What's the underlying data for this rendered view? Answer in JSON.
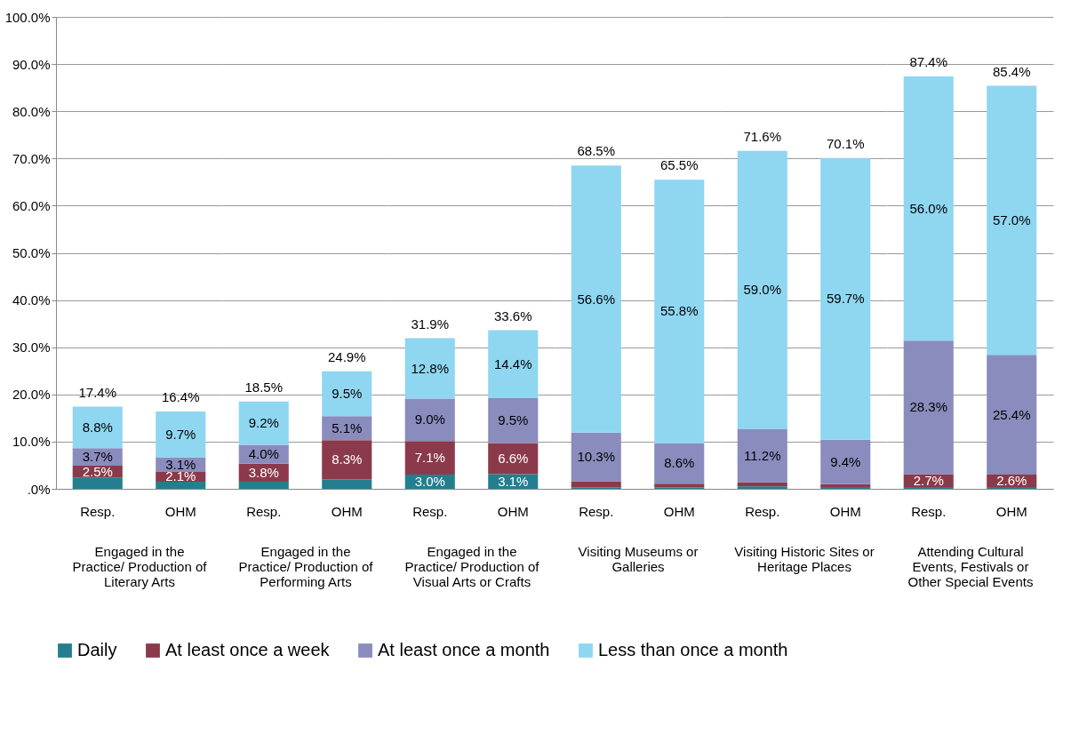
{
  "chart_data": [
    {
      "type": "bar",
      "stacked": true,
      "xlabel": "Engaged in the Practice/ Production of Literary Arts",
      "categories": [
        "Resp.",
        "OHM"
      ],
      "ylim": [
        0,
        100
      ],
      "yticks": [
        {
          "value": 0,
          "label": ".0%"
        },
        {
          "value": 10,
          "label": "10.0%"
        },
        {
          "value": 20,
          "label": "20.0%"
        },
        {
          "value": 30,
          "label": "30.0%"
        },
        {
          "value": 40,
          "label": "40.0%"
        },
        {
          "value": 50,
          "label": "50.0%"
        },
        {
          "value": 60,
          "label": "60.0%"
        },
        {
          "value": 70,
          "label": "70.0%"
        },
        {
          "value": 80,
          "label": "80.0%"
        },
        {
          "value": 90,
          "label": "90.0%"
        },
        {
          "value": 100,
          "label": "100.0%"
        }
      ],
      "grid": "y",
      "legend": "bottom",
      "totals": [
        "17.4%",
        "16.4%"
      ],
      "series": [
        {
          "name": "Daily",
          "color": "#237f8f",
          "values": [
            2.4,
            1.5
          ],
          "value_labels": [
            null,
            null
          ]
        },
        {
          "name": "At least once a week",
          "color": "#8b3a4b",
          "values": [
            2.5,
            2.1
          ],
          "value_labels": [
            "2.5%",
            "2.1%"
          ]
        },
        {
          "name": "At least once a month",
          "color": "#8a8cbd",
          "values": [
            3.7,
            3.1
          ],
          "value_labels": [
            "3.7%",
            "3.1%"
          ]
        },
        {
          "name": "Less than once a month",
          "color": "#8fd6f1",
          "values": [
            8.8,
            9.7
          ],
          "value_labels": [
            "8.8%",
            "9.7%"
          ]
        }
      ]
    },
    {
      "type": "bar",
      "stacked": true,
      "xlabel": "Engaged in the Practice/ Production of Performing Arts",
      "categories": [
        "Resp.",
        "OHM"
      ],
      "ylim": [
        0,
        100
      ],
      "yticks": [
        0,
        10,
        20,
        30,
        40,
        50,
        60,
        70,
        80,
        90,
        100
      ],
      "grid": "y",
      "tick_labels": "x",
      "totals": [
        "18.5%",
        "24.9%"
      ],
      "series": [
        {
          "name": "Daily",
          "color": "#237f8f",
          "values": [
            1.5,
            2.0
          ],
          "value_labels": [
            null,
            null
          ]
        },
        {
          "name": "At least once a week",
          "color": "#8b3a4b",
          "values": [
            3.8,
            8.3
          ],
          "value_labels": [
            "3.8%",
            "8.3%"
          ]
        },
        {
          "name": "At least once a month",
          "color": "#8a8cbd",
          "values": [
            4.0,
            5.1
          ],
          "value_labels": [
            "4.0%",
            "5.1%"
          ]
        },
        {
          "name": "Less than once a month",
          "color": "#8fd6f1",
          "values": [
            9.2,
            9.5
          ],
          "value_labels": [
            "9.2%",
            "9.5%"
          ]
        }
      ]
    },
    {
      "type": "bar",
      "stacked": true,
      "xlabel": "Engaged in the Practice/ Production of Visual Arts or Crafts",
      "categories": [
        "Resp.",
        "OHM"
      ],
      "ylim": [
        0,
        100
      ],
      "yticks": [
        0,
        10,
        20,
        30,
        40,
        50,
        60,
        70,
        80,
        90,
        100
      ],
      "grid": "y",
      "tick_labels": "x",
      "totals": [
        "31.9%",
        "33.6%"
      ],
      "series": [
        {
          "name": "Daily",
          "color": "#237f8f",
          "values": [
            3.0,
            3.1
          ],
          "value_labels": [
            "3.0%",
            "3.1%"
          ]
        },
        {
          "name": "At least once a week",
          "color": "#8b3a4b",
          "values": [
            7.1,
            6.6
          ],
          "value_labels": [
            "7.1%",
            "6.6%"
          ]
        },
        {
          "name": "At least once a month",
          "color": "#8a8cbd",
          "values": [
            9.0,
            9.5
          ],
          "value_labels": [
            "9.0%",
            "9.5%"
          ]
        },
        {
          "name": "Less than once a month",
          "color": "#8fd6f1",
          "values": [
            12.8,
            14.4
          ],
          "value_labels": [
            "12.8%",
            "14.4%"
          ]
        }
      ]
    },
    {
      "type": "bar",
      "stacked": true,
      "xlabel": "Visiting Museums or Galleries",
      "categories": [
        "Resp.",
        "OHM"
      ],
      "ylim": [
        0,
        100
      ],
      "yticks": [
        0,
        10,
        20,
        30,
        40,
        50,
        60,
        70,
        80,
        90,
        100
      ],
      "grid": "y",
      "tick_labels": "x",
      "totals": [
        "68.5%",
        "65.5%"
      ],
      "series": [
        {
          "name": "Daily",
          "color": "#237f8f",
          "values": [
            0.3,
            0.3
          ],
          "value_labels": [
            null,
            null
          ]
        },
        {
          "name": "At least once a week",
          "color": "#8b3a4b",
          "values": [
            1.3,
            0.8
          ],
          "value_labels": [
            null,
            null
          ]
        },
        {
          "name": "At least once a month",
          "color": "#8a8cbd",
          "values": [
            10.3,
            8.6
          ],
          "value_labels": [
            "10.3%",
            "8.6%"
          ]
        },
        {
          "name": "Less than once a month",
          "color": "#8fd6f1",
          "values": [
            56.6,
            55.8
          ],
          "value_labels": [
            "56.6%",
            "55.8%"
          ]
        }
      ]
    },
    {
      "type": "bar",
      "stacked": true,
      "xlabel": "Visiting Historic Sites or Heritage Places",
      "categories": [
        "Resp.",
        "OHM"
      ],
      "ylim": [
        0,
        100
      ],
      "yticks": [
        0,
        10,
        20,
        30,
        40,
        50,
        60,
        70,
        80,
        90,
        100
      ],
      "grid": "y",
      "tick_labels": "x",
      "totals": [
        "71.6%",
        "70.1%"
      ],
      "series": [
        {
          "name": "Daily",
          "color": "#237f8f",
          "values": [
            0.5,
            0.4
          ],
          "value_labels": [
            null,
            null
          ]
        },
        {
          "name": "At least once a week",
          "color": "#8b3a4b",
          "values": [
            0.9,
            0.6
          ],
          "value_labels": [
            null,
            null
          ]
        },
        {
          "name": "At least once a month",
          "color": "#8a8cbd",
          "values": [
            11.2,
            9.4
          ],
          "value_labels": [
            "11.2%",
            "9.4%"
          ]
        },
        {
          "name": "Less than once a month",
          "color": "#8fd6f1",
          "values": [
            59.0,
            59.7
          ],
          "value_labels": [
            "59.0%",
            "59.7%"
          ]
        }
      ]
    },
    {
      "type": "bar",
      "stacked": true,
      "xlabel": "Attending  Cultural Events, Festivals or Other Special Events",
      "categories": [
        "Resp.",
        "OHM"
      ],
      "ylim": [
        0,
        100
      ],
      "yticks": [
        0,
        10,
        20,
        30,
        40,
        50,
        60,
        70,
        80,
        90,
        100
      ],
      "grid": "y",
      "tick_labels": "x",
      "totals": [
        "87.4%",
        "85.4%"
      ],
      "series": [
        {
          "name": "Daily",
          "color": "#237f8f",
          "values": [
            0.4,
            0.4
          ],
          "value_labels": [
            null,
            null
          ]
        },
        {
          "name": "At least once a week",
          "color": "#8b3a4b",
          "values": [
            2.7,
            2.6
          ],
          "value_labels": [
            "2.7%",
            "2.6%"
          ]
        },
        {
          "name": "At least once a month",
          "color": "#8a8cbd",
          "values": [
            28.3,
            25.4
          ],
          "value_labels": [
            "28.3%",
            "25.4%"
          ]
        },
        {
          "name": "Less than once a month",
          "color": "#8fd6f1",
          "values": [
            56.0,
            57.0
          ],
          "value_labels": [
            "56.0%",
            "57.0%"
          ]
        }
      ]
    }
  ]
}
